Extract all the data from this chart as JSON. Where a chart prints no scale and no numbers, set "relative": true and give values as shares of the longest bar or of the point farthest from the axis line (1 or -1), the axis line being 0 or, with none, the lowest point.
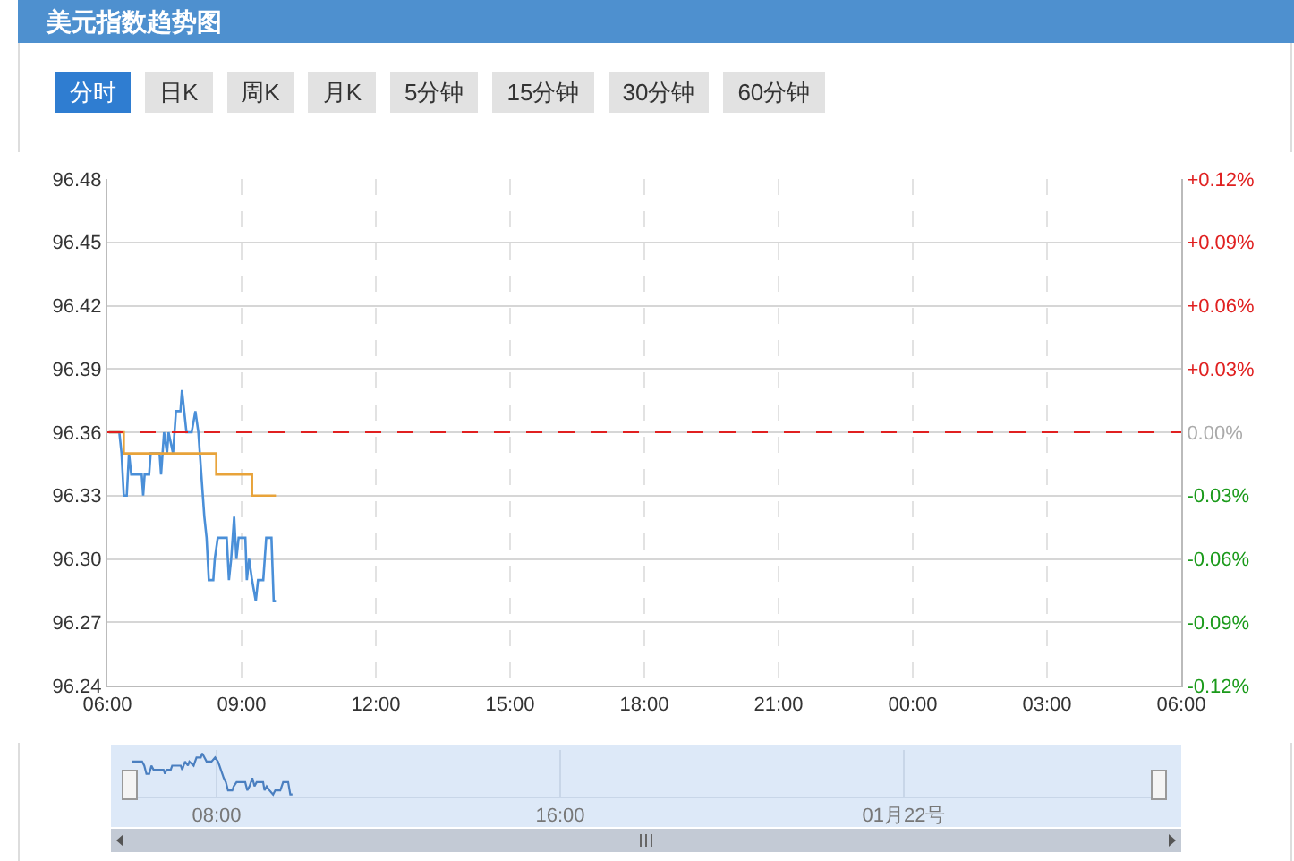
{
  "chart_data": [
    {
      "type": "line",
      "title": "美元指数趋势图",
      "annotations": [
        "分时",
        "日K",
        "周K",
        "月K",
        "5分钟",
        "15分钟",
        "30分钟",
        "60分钟"
      ],
      "series": [
        {
          "type": "line",
          "color": "#4a8fd8",
          "x": [
            "--01-21T06:02",
            "--01-21T06:16",
            "--01-21T06:19",
            "--01-21T06:22",
            "--01-21T06:26",
            "--01-21T06:29",
            "--01-21T06:32",
            "--01-21T06:46",
            "--01-21T06:48",
            "--01-21T06:50",
            "--01-21T06:56",
            "--01-21T06:58",
            "--01-21T07:10",
            "--01-21T07:12",
            "--01-21T07:14",
            "--01-21T07:16",
            "--01-21T07:20",
            "--01-21T07:22",
            "--01-21T07:28",
            "--01-21T07:32",
            "--01-21T07:38",
            "--01-21T07:40",
            "--01-21T07:43",
            "--01-21T07:46",
            "--01-21T07:53",
            "--01-21T07:58",
            "--01-21T08:02",
            "--01-21T08:04",
            "--01-21T08:08",
            "--01-21T08:10",
            "--01-21T08:13",
            "--01-21T08:16",
            "--01-21T08:22",
            "--01-21T08:24",
            "--01-21T08:28",
            "--01-21T08:40",
            "--01-21T08:43",
            "--01-21T08:46",
            "--01-21T08:50",
            "--01-21T08:53",
            "--01-21T08:56",
            "--01-21T09:05",
            "--01-21T09:07",
            "--01-21T09:10",
            "--01-21T09:14",
            "--01-21T09:19",
            "--01-21T09:22",
            "--01-21T09:29",
            "--01-21T09:33",
            "--01-21T09:40",
            "--01-21T09:43",
            "--01-21T09:46"
          ],
          "values": [
            96.36,
            96.36,
            96.35,
            96.33,
            96.33,
            96.35,
            96.34,
            96.34,
            96.33,
            96.34,
            96.34,
            96.35,
            96.35,
            96.34,
            96.35,
            96.36,
            96.35,
            96.36,
            96.35,
            96.37,
            96.37,
            96.38,
            96.37,
            96.36,
            96.36,
            96.37,
            96.36,
            96.35,
            96.33,
            96.32,
            96.31,
            96.29,
            96.29,
            96.3,
            96.31,
            96.31,
            96.29,
            96.3,
            96.32,
            96.3,
            96.31,
            96.31,
            96.29,
            96.3,
            96.29,
            96.28,
            96.29,
            96.29,
            96.31,
            96.31,
            96.28,
            96.28
          ]
        },
        {
          "type": "step",
          "color": "#e8a33a",
          "x": [
            "--01-21T06:02",
            "--01-21T06:22",
            "--01-21T08:26",
            "--01-21T09:14",
            "--01-21T09:46"
          ],
          "values": [
            96.36,
            96.35,
            96.34,
            96.33,
            96.33
          ]
        }
      ],
      "xlim": [
        "--01-21T06:00",
        "--01-22T06:00"
      ],
      "xticks": [
        {
          "value": "--01-21T06:00",
          "label": "06:00"
        },
        {
          "value": "--01-21T09:00",
          "label": "09:00"
        },
        {
          "value": "--01-21T12:00",
          "label": "12:00"
        },
        {
          "value": "--01-21T15:00",
          "label": "15:00"
        },
        {
          "value": "--01-21T18:00",
          "label": "18:00"
        },
        {
          "value": "--01-21T21:00",
          "label": "21:00"
        },
        {
          "value": "--01-22T00:00",
          "label": "00:00"
        },
        {
          "value": "--01-22T03:00",
          "label": "03:00"
        },
        {
          "value": "--01-22T06:00",
          "label": "06:00"
        }
      ],
      "ylim": [
        96.24,
        96.48
      ],
      "yticks": [
        96.24,
        96.27,
        {
          "value": 96.3,
          "label": "96.30"
        },
        96.33,
        96.36,
        96.39,
        96.42,
        96.45,
        96.48
      ],
      "y2lim": [
        -0.12,
        0.12
      ],
      "y2ticks": [
        {
          "value": -0.12,
          "label": "-0.12%"
        },
        {
          "value": -0.09,
          "label": "-0.09%"
        },
        {
          "value": -0.06,
          "label": "-0.06%"
        },
        {
          "value": -0.03,
          "label": "-0.03%"
        },
        {
          "value": 0,
          "label": "0.00%"
        },
        {
          "value": 0.03,
          "label": "+0.03%"
        },
        {
          "value": 0.06,
          "label": "+0.06%"
        },
        {
          "value": 0.09,
          "label": "+0.09%"
        },
        {
          "value": 0.12,
          "label": "+0.12%"
        }
      ],
      "ref_lines": [
        {
          "axis": "y",
          "value": 96.36,
          "color": "#e02020",
          "line_style": "dashed"
        }
      ],
      "grid": true,
      "marker": "none",
      "line_style": "solid"
    },
    {
      "type": "line",
      "relative": true,
      "series": [
        {
          "color": "#4a7fc0",
          "x": [
            "--01-21T06:02",
            "--01-21T06:16",
            "--01-21T06:19",
            "--01-21T06:22",
            "--01-21T06:26",
            "--01-21T06:29",
            "--01-21T06:32",
            "--01-21T06:46",
            "--01-21T06:48",
            "--01-21T06:50",
            "--01-21T06:56",
            "--01-21T06:58",
            "--01-21T07:10",
            "--01-21T07:12",
            "--01-21T07:14",
            "--01-21T07:16",
            "--01-21T07:20",
            "--01-21T07:22",
            "--01-21T07:28",
            "--01-21T07:32",
            "--01-21T07:38",
            "--01-21T07:40",
            "--01-21T07:43",
            "--01-21T07:46",
            "--01-21T07:53",
            "--01-21T07:58",
            "--01-21T08:02",
            "--01-21T08:04",
            "--01-21T08:08",
            "--01-21T08:10",
            "--01-21T08:13",
            "--01-21T08:16",
            "--01-21T08:22",
            "--01-21T08:24",
            "--01-21T08:28",
            "--01-21T08:40",
            "--01-21T08:43",
            "--01-21T08:46",
            "--01-21T08:50",
            "--01-21T08:53",
            "--01-21T08:56",
            "--01-21T09:05",
            "--01-21T09:07",
            "--01-21T09:10",
            "--01-21T09:14",
            "--01-21T09:19",
            "--01-21T09:22",
            "--01-21T09:29",
            "--01-21T09:33",
            "--01-21T09:40",
            "--01-21T09:43",
            "--01-21T09:46"
          ],
          "values": [
            0.8,
            0.8,
            0.7,
            0.5,
            0.5,
            0.7,
            0.6,
            0.6,
            0.5,
            0.6,
            0.6,
            0.7,
            0.7,
            0.6,
            0.7,
            0.8,
            0.7,
            0.8,
            0.7,
            0.9,
            0.9,
            1,
            0.9,
            0.8,
            0.8,
            0.9,
            0.8,
            0.7,
            0.5,
            0.4,
            0.3,
            0.1,
            0.1,
            0.2,
            0.3,
            0.3,
            0.1,
            0.2,
            0.4,
            0.2,
            0.3,
            0.3,
            0.1,
            0.2,
            0.1,
            0,
            0.1,
            0.1,
            0.3,
            0.3,
            0,
            0
          ]
        }
      ],
      "xlim": [
        "--01-21T06:00",
        "--01-22T06:00"
      ],
      "xticks": [
        {
          "value": "--01-21T08:00",
          "label": "08:00"
        },
        {
          "value": "--01-21T16:00",
          "label": "16:00"
        },
        {
          "value": "--01-22T00:00",
          "label": "01月22号"
        }
      ],
      "grid": "x",
      "tick_labels": "x"
    }
  ]
}
